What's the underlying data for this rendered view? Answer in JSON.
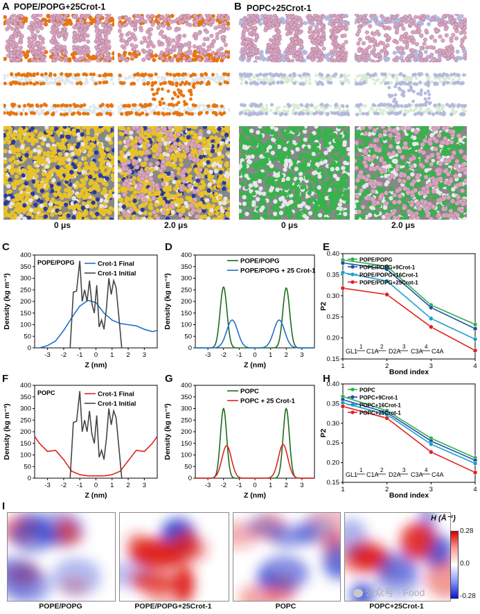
{
  "panels": {
    "A": {
      "letter": "A",
      "title": "POPE/POPG+25Crot-1"
    },
    "B": {
      "letter": "B",
      "title": "POPC+25Crot-1"
    },
    "C": {
      "letter": "C"
    },
    "D": {
      "letter": "D"
    },
    "E": {
      "letter": "E"
    },
    "F": {
      "letter": "F"
    },
    "G": {
      "letter": "G"
    },
    "H": {
      "letter": "H"
    },
    "I": {
      "letter": "I"
    }
  },
  "time_labels": [
    "0 μs",
    "2.0 μs",
    "0 μs",
    "2.0 μs"
  ],
  "heatmap": {
    "labels": [
      "POPE/POPG",
      "POPE/POPG+25Crot-1",
      "POPC",
      "POPC+25Crot-1"
    ],
    "colorbar_title": "H (Å⁻¹)",
    "ticks": [
      "0.28",
      "0.0",
      "-0.28"
    ],
    "colors": {
      "pos": "#e0201c",
      "neg": "#2a3fd0",
      "zero": "#ffffff"
    }
  },
  "watermark": "公众号 · Food",
  "chart_data": [
    {
      "id": "C",
      "type": "line",
      "inset": "POPE/POPG",
      "xlabel": "Z (nm)",
      "ylabel": "Density (kg m⁻³)",
      "xlim": [
        -3.8,
        3.8
      ],
      "ylim": [
        0,
        400
      ],
      "xticks": [
        -3,
        -2,
        -1,
        0,
        1,
        2,
        3
      ],
      "yticks": [
        0,
        50,
        100,
        150,
        200,
        250,
        300,
        350,
        400
      ],
      "series": [
        {
          "name": "Crot-1 Final",
          "color": "#1f6fc8",
          "x": [
            -3.5,
            -3,
            -2.5,
            -2,
            -1.5,
            -1,
            -0.5,
            0,
            0.5,
            1,
            1.5,
            2,
            2.5,
            3,
            3.5,
            3.8
          ],
          "y": [
            0,
            10,
            30,
            75,
            130,
            180,
            205,
            195,
            150,
            120,
            105,
            100,
            95,
            80,
            70,
            75
          ]
        },
        {
          "name": "Crot-1 Initial",
          "color": "#444444",
          "x": [
            -1.6,
            -1.4,
            -1.2,
            -1.0,
            -0.85,
            -0.7,
            -0.55,
            -0.4,
            -0.25,
            -0.1,
            0.05,
            0.2,
            0.35,
            0.5,
            0.65,
            0.8,
            0.95,
            1.1,
            1.25,
            1.4,
            1.6
          ],
          "y": [
            0,
            240,
            245,
            375,
            200,
            250,
            200,
            290,
            190,
            150,
            270,
            90,
            120,
            80,
            170,
            300,
            230,
            290,
            260,
            150,
            0
          ]
        }
      ]
    },
    {
      "id": "D",
      "type": "line",
      "xlabel": "Z (nm)",
      "ylabel": "Density (kg m⁻³)",
      "xlim": [
        -3.8,
        3.8
      ],
      "ylim": [
        0,
        400
      ],
      "xticks": [
        -3,
        -2,
        -1,
        0,
        1,
        2,
        3
      ],
      "yticks": [
        0,
        50,
        100,
        150,
        200,
        250,
        300,
        350,
        400
      ],
      "series": [
        {
          "name": "POPE/POPG",
          "color": "#1a6b1a",
          "peaks": [
            {
              "mu": -2.0,
              "sigma": 0.22,
              "amp": 262
            },
            {
              "mu": 2.0,
              "sigma": 0.22,
              "amp": 258
            }
          ]
        },
        {
          "name": "POPE/POPG + 25 Crot-1",
          "color": "#1f6fc8",
          "peaks": [
            {
              "mu": -1.45,
              "sigma": 0.35,
              "amp": 120
            },
            {
              "mu": 1.55,
              "sigma": 0.35,
              "amp": 120
            }
          ]
        }
      ]
    },
    {
      "id": "E",
      "type": "line",
      "xlabel": "Bond index",
      "ylabel": "P2",
      "xlim": [
        1,
        4
      ],
      "ylim": [
        0.15,
        0.4
      ],
      "xticks": [
        1,
        2,
        3,
        4
      ],
      "yticks": [
        0.15,
        0.2,
        0.25,
        0.3,
        0.35,
        0.4
      ],
      "annotation": [
        "GL1",
        "1",
        "C1A",
        "2",
        "D2A",
        "3",
        "C3A",
        "4",
        "C4A"
      ],
      "series": [
        {
          "name": "POPE/POPG",
          "color": "#2ab04a",
          "x": [
            1,
            2,
            3,
            4
          ],
          "y": [
            0.385,
            0.37,
            0.278,
            0.232
          ]
        },
        {
          "name": "POPE/POPG+9Crot-1",
          "color": "#1f4fa8",
          "x": [
            1,
            2,
            3,
            4
          ],
          "y": [
            0.378,
            0.363,
            0.272,
            0.222
          ]
        },
        {
          "name": "POPE/POPG+16Crot-1",
          "color": "#1aa0c8",
          "x": [
            1,
            2,
            3,
            4
          ],
          "y": [
            0.355,
            0.335,
            0.246,
            0.197
          ]
        },
        {
          "name": "POPE/POPG+25Crot-1",
          "color": "#e02020",
          "x": [
            1,
            2,
            3,
            4
          ],
          "y": [
            0.318,
            0.303,
            0.226,
            0.17
          ]
        }
      ]
    },
    {
      "id": "F",
      "type": "line",
      "inset": "POPC",
      "xlabel": "Z (nm)",
      "ylabel": "Density (kg m⁻³)",
      "xlim": [
        -3.8,
        3.8
      ],
      "ylim": [
        0,
        400
      ],
      "xticks": [
        -3,
        -2,
        -1,
        0,
        1,
        2,
        3
      ],
      "yticks": [
        0,
        50,
        100,
        150,
        200,
        250,
        300,
        350,
        400
      ],
      "series": [
        {
          "name": "Crot-1 Final",
          "color": "#e02020",
          "x": [
            -3.8,
            -3.5,
            -3,
            -2.5,
            -2,
            -1.5,
            -1,
            -0.5,
            0,
            0.5,
            1,
            1.5,
            2,
            2.5,
            3,
            3.5,
            3.8
          ],
          "y": [
            180,
            150,
            115,
            120,
            80,
            30,
            15,
            10,
            10,
            10,
            15,
            30,
            75,
            120,
            115,
            150,
            180
          ]
        },
        {
          "name": "Crot-1 Initial",
          "color": "#444444",
          "x": [
            -1.6,
            -1.4,
            -1.2,
            -1.0,
            -0.85,
            -0.7,
            -0.55,
            -0.4,
            -0.25,
            -0.1,
            0.05,
            0.2,
            0.35,
            0.5,
            0.65,
            0.8,
            0.95,
            1.1,
            1.25,
            1.4,
            1.6
          ],
          "y": [
            0,
            240,
            245,
            375,
            200,
            250,
            200,
            290,
            190,
            150,
            270,
            90,
            120,
            80,
            170,
            300,
            230,
            290,
            260,
            150,
            0
          ]
        }
      ]
    },
    {
      "id": "G",
      "type": "line",
      "xlabel": "Z (nm)",
      "ylabel": "Density (kg m⁻³)",
      "xlim": [
        -3.8,
        3.8
      ],
      "ylim": [
        0,
        400
      ],
      "xticks": [
        -3,
        -2,
        -1,
        0,
        1,
        2,
        3
      ],
      "yticks": [
        0,
        50,
        100,
        150,
        200,
        250,
        300,
        350,
        400
      ],
      "series": [
        {
          "name": "POPC",
          "color": "#1a6b1a",
          "peaks": [
            {
              "mu": -2.0,
              "sigma": 0.2,
              "amp": 300
            },
            {
              "mu": 2.0,
              "sigma": 0.2,
              "amp": 300
            }
          ]
        },
        {
          "name": "POPC + 25 Crot-1",
          "color": "#e02020",
          "peaks": [
            {
              "mu": -1.8,
              "sigma": 0.3,
              "amp": 140
            },
            {
              "mu": 1.8,
              "sigma": 0.3,
              "amp": 145
            }
          ]
        }
      ]
    },
    {
      "id": "H",
      "type": "line",
      "xlabel": "Bond index",
      "ylabel": "P2",
      "xlim": [
        1,
        4
      ],
      "ylim": [
        0.15,
        0.4
      ],
      "xticks": [
        1,
        2,
        3,
        4
      ],
      "yticks": [
        0.15,
        0.2,
        0.25,
        0.3,
        0.35,
        0.4
      ],
      "annotation": [
        "GL1",
        "1",
        "C1A",
        "2",
        "D2A",
        "3",
        "C3A",
        "4",
        "C4A"
      ],
      "series": [
        {
          "name": "POPC",
          "color": "#2ab04a",
          "x": [
            1,
            2,
            3,
            4
          ],
          "y": [
            0.368,
            0.332,
            0.262,
            0.212
          ]
        },
        {
          "name": "POPC+9Crot-1",
          "color": "#1f4fa8",
          "x": [
            1,
            2,
            3,
            4
          ],
          "y": [
            0.36,
            0.327,
            0.255,
            0.206
          ]
        },
        {
          "name": "POPC+16Crot-1",
          "color": "#1aa0c8",
          "x": [
            1,
            2,
            3,
            4
          ],
          "y": [
            0.352,
            0.322,
            0.247,
            0.198
          ]
        },
        {
          "name": "POPC+25Crot-1",
          "color": "#e02020",
          "x": [
            1,
            2,
            3,
            4
          ],
          "y": [
            0.343,
            0.313,
            0.227,
            0.175
          ]
        }
      ]
    }
  ]
}
